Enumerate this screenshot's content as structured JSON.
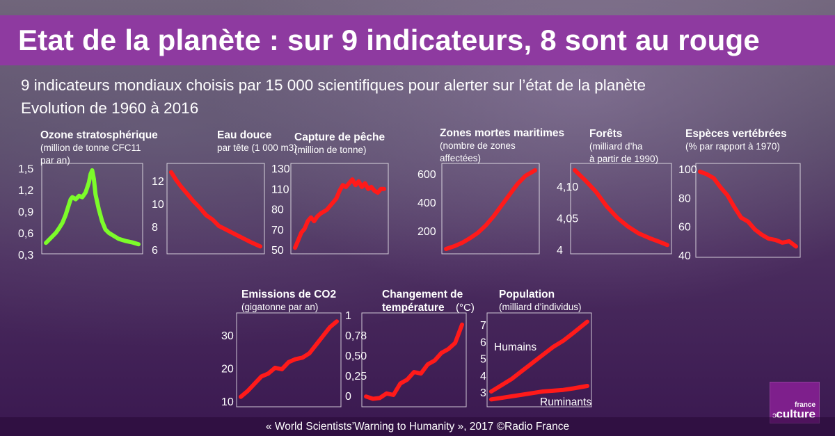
{
  "header": {
    "title": "Etat de la planète : sur 9 indicateurs, 8 sont au rouge",
    "subtitle1": "9 indicateurs mondiaux choisis par 15 000 scientifiques pour alerter sur l’état de la planète",
    "subtitle2": "Evolution de 1960 à 2016"
  },
  "footer": {
    "credit": "« World Scientists’Warning to Humanity », 2017 ©Radio France"
  },
  "logo": {
    "line1": "france",
    "line2": "culture"
  },
  "colors": {
    "band": "#8e3aa0",
    "good": "#7cfc2a",
    "bad": "#ff1a1a"
  },
  "chart_data": [
    {
      "id": "ozone",
      "type": "line",
      "title": "Ozone stratosphérique",
      "subtitle": [
        "(million de tonne CFC11",
        "par an)"
      ],
      "color": "#7cfc2a",
      "yticks": [
        "1,5",
        "1,2",
        "0,9",
        "0,6",
        "0,3"
      ],
      "ylim": [
        0.3,
        1.5
      ],
      "x": [
        1960,
        1964,
        1966,
        1968,
        1970,
        1972,
        1974,
        1975,
        1976,
        1978,
        1980,
        1982,
        1984,
        1986,
        1987,
        1988,
        1989,
        1990,
        1992,
        1994,
        1996,
        1998,
        2000,
        2004,
        2008,
        2012,
        2016
      ],
      "values": [
        0.4,
        0.5,
        0.55,
        0.62,
        0.7,
        0.82,
        0.98,
        1.05,
        1.08,
        1.05,
        1.1,
        1.08,
        1.15,
        1.3,
        1.42,
        1.48,
        1.35,
        1.12,
        0.9,
        0.72,
        0.6,
        0.55,
        0.52,
        0.46,
        0.43,
        0.41,
        0.38
      ]
    },
    {
      "id": "eau",
      "type": "line",
      "title": "Eau douce",
      "subtitle": [
        "par tête (1 000 m3)"
      ],
      "color": "#ff1a1a",
      "yticks": [
        "12",
        "10",
        "8",
        "6"
      ],
      "ylim": [
        6,
        13.5
      ],
      "x": [
        1960,
        1963,
        1966,
        1970,
        1974,
        1978,
        1982,
        1986,
        1990,
        1994,
        1998,
        2002,
        2006,
        2010,
        2016
      ],
      "values": [
        13.2,
        12.5,
        11.9,
        11.2,
        10.5,
        9.9,
        9.2,
        8.8,
        8.2,
        7.9,
        7.6,
        7.3,
        7.0,
        6.7,
        6.3
      ]
    },
    {
      "id": "peche",
      "type": "line",
      "title": "Capture de pêche",
      "subtitle": [
        "(million de tonne)"
      ],
      "color": "#ff1a1a",
      "yticks": [
        "130",
        "110",
        "80",
        "70",
        "50"
      ],
      "ylim": [
        50,
        135
      ],
      "x": [
        1960,
        1962,
        1964,
        1966,
        1968,
        1970,
        1972,
        1974,
        1976,
        1978,
        1980,
        1982,
        1984,
        1986,
        1988,
        1990,
        1992,
        1994,
        1996,
        1998,
        2000,
        2002,
        2004,
        2006,
        2008,
        2010,
        2012,
        2014,
        2016
      ],
      "values": [
        52,
        60,
        68,
        72,
        80,
        84,
        80,
        85,
        88,
        90,
        92,
        96,
        100,
        104,
        112,
        118,
        116,
        120,
        124,
        118,
        122,
        116,
        120,
        114,
        116,
        112,
        110,
        114,
        114
      ]
    },
    {
      "id": "zones",
      "type": "line",
      "title": "Zones mortes maritimes",
      "subtitle": [
        "(nombre de zones",
        "affectées)"
      ],
      "color": "#ff1a1a",
      "yticks": [
        "600",
        "400",
        "200"
      ],
      "ylim": [
        50,
        650
      ],
      "x": [
        1960,
        1965,
        1970,
        1975,
        1980,
        1985,
        1990,
        1995,
        2000,
        2005,
        2010,
        2016
      ],
      "values": [
        55,
        75,
        100,
        135,
        175,
        230,
        300,
        380,
        460,
        540,
        600,
        640
      ]
    },
    {
      "id": "forets",
      "type": "line",
      "title": "Forêts",
      "subtitle": [
        "(milliard d’ha",
        "à partir de 1990)"
      ],
      "color": "#ff1a1a",
      "yticks": [
        "4,10",
        "4,05",
        "4"
      ],
      "ylim": [
        3.99,
        4.13
      ],
      "x": [
        1990,
        1993,
        1996,
        1999,
        2002,
        2005,
        2008,
        2011,
        2014,
        2016
      ],
      "values": [
        4.128,
        4.11,
        4.09,
        4.065,
        4.045,
        4.03,
        4.018,
        4.01,
        4.003,
        3.998
      ]
    },
    {
      "id": "especes",
      "type": "line",
      "title": "Espèces vertébrées",
      "subtitle": [
        "(% par rapport à 1970)"
      ],
      "color": "#ff1a1a",
      "yticks": [
        "100",
        "80",
        "60",
        "40"
      ],
      "ylim": [
        38,
        102
      ],
      "x": [
        1970,
        1973,
        1976,
        1979,
        1982,
        1985,
        1988,
        1991,
        1994,
        1997,
        2000,
        2003,
        2006,
        2009,
        2012
      ],
      "values": [
        100,
        98,
        95,
        88,
        82,
        73,
        65,
        62,
        56,
        52,
        49,
        48,
        46,
        47,
        43
      ]
    },
    {
      "id": "co2",
      "type": "line",
      "title": "Emissions de CO2",
      "subtitle": [
        "(gigatonne par an)"
      ],
      "color": "#ff1a1a",
      "yticks": [
        "30",
        "20",
        "10"
      ],
      "ylim": [
        8,
        37
      ],
      "x": [
        1960,
        1964,
        1968,
        1972,
        1976,
        1980,
        1984,
        1988,
        1992,
        1996,
        2000,
        2004,
        2008,
        2012,
        2016
      ],
      "values": [
        10,
        12,
        14.5,
        17,
        18,
        20,
        19.5,
        22,
        23,
        23.5,
        25,
        28,
        31,
        34,
        36
      ]
    },
    {
      "id": "temperature",
      "type": "line",
      "title": "Changement de",
      "title2": "température",
      "subtitle": [
        "(°C)"
      ],
      "color": "#ff1a1a",
      "yticks": [
        "1",
        "0,78",
        "0,50",
        "0,25",
        "0"
      ],
      "ylim": [
        -0.1,
        1
      ],
      "x": [
        1960,
        1964,
        1968,
        1972,
        1976,
        1980,
        1984,
        1988,
        1992,
        1996,
        2000,
        2004,
        2008,
        2012,
        2016
      ],
      "values": [
        -0.02,
        -0.05,
        -0.04,
        0.02,
        0.0,
        0.15,
        0.2,
        0.3,
        0.28,
        0.4,
        0.45,
        0.55,
        0.6,
        0.68,
        0.92
      ]
    },
    {
      "id": "population",
      "type": "line",
      "title": "Population",
      "subtitle": [
        "(milliard d’individus)"
      ],
      "yticks": [
        "7",
        "6",
        "5",
        "4",
        "3"
      ],
      "ylim": [
        2.3,
        7.6
      ],
      "annotations": [
        "Humains",
        "Ruminants"
      ],
      "series": [
        {
          "name": "Humains",
          "color": "#ff1a1a",
          "x": [
            1960,
            1966,
            1972,
            1978,
            1984,
            1990,
            1996,
            2002,
            2008,
            2016
          ],
          "values": [
            3.0,
            3.4,
            3.8,
            4.3,
            4.8,
            5.3,
            5.8,
            6.2,
            6.7,
            7.4
          ]
        },
        {
          "name": "Ruminants",
          "color": "#ff1a1a",
          "x": [
            1960,
            1966,
            1972,
            1978,
            1984,
            1990,
            1996,
            2002,
            2008,
            2016
          ],
          "values": [
            2.5,
            2.6,
            2.7,
            2.8,
            2.9,
            3.0,
            3.05,
            3.1,
            3.2,
            3.35
          ]
        }
      ]
    }
  ]
}
